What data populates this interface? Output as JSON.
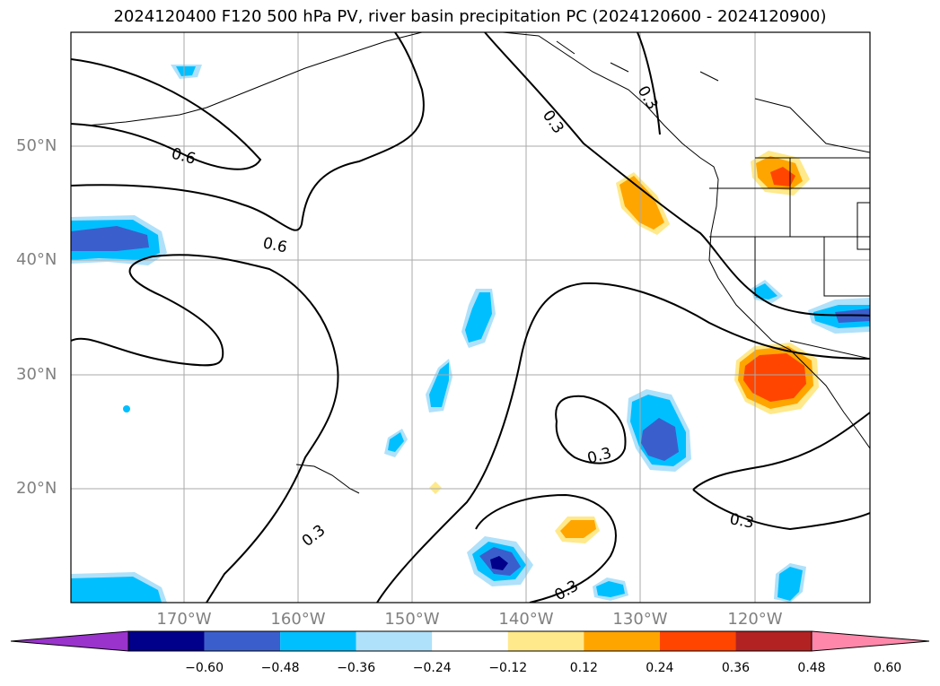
{
  "title": "2024120400 F120 500 hPa PV, river basin precipitation PC (2024120600 - 2024120900)",
  "lat_labels": [
    "50°N",
    "40°N",
    "30°N",
    "20°N"
  ],
  "lon_labels": [
    "170°W",
    "160°W",
    "150°W",
    "140°W",
    "130°W",
    "120°W"
  ],
  "contour_labels": [
    "0.6",
    "0.6",
    "0.3",
    "0.3",
    "0.3",
    "0.3",
    "0.3",
    "0.3"
  ],
  "colorbar": {
    "ticks": [
      "−0.60",
      "−0.48",
      "−0.36",
      "−0.24",
      "−0.12",
      "0.12",
      "0.24",
      "0.36",
      "0.48",
      "0.60"
    ],
    "colors": [
      "#9933cc",
      "#00008b",
      "#3a5fcd",
      "#00bfff",
      "#afe1fa",
      "#ffffff",
      "#ffe98a",
      "#ffa500",
      "#ff4500",
      "#b22222",
      "#ff88aa"
    ]
  },
  "colors": {
    "neg_strong": "#00008b",
    "neg_mid": "#3a5fcd",
    "neg": "#00bfff",
    "neg_weak": "#afe1fa",
    "pos_weak": "#ffe98a",
    "pos": "#ffa500",
    "pos_mid": "#ff4500",
    "grid": "#aaaaaa",
    "axis_label": "#808080"
  }
}
